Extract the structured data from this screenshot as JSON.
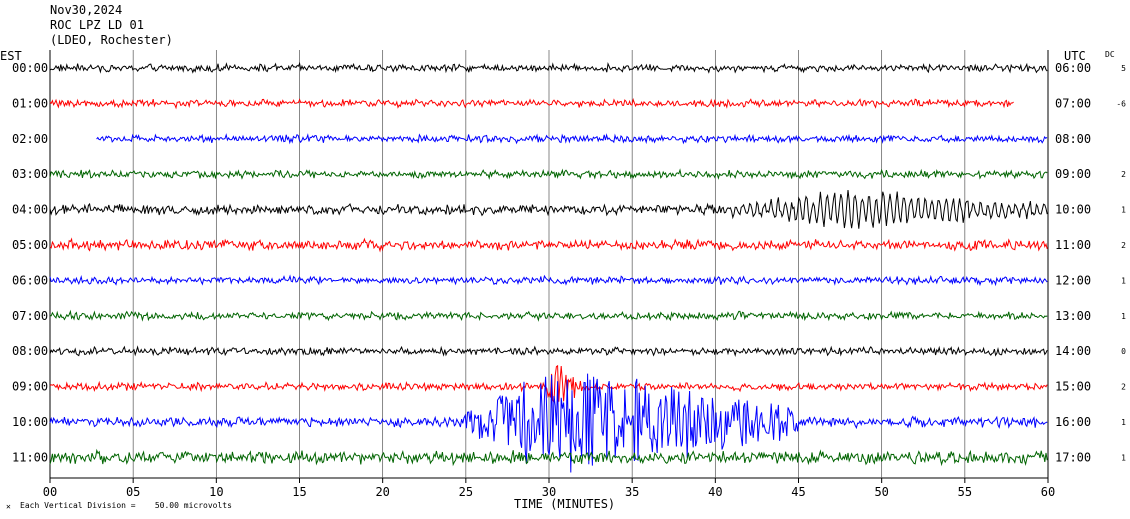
{
  "header": {
    "date": "Nov30,2024",
    "station": "ROC LPZ LD 01",
    "network": "(LDEO, Rochester)"
  },
  "footer": {
    "scale_note": "Each Vertical Division =    50.00 microvolts"
  },
  "colors": {
    "black": "#000000",
    "red": "#ff0000",
    "blue": "#0000ff",
    "green": "#006400"
  },
  "chart_data": {
    "type": "line",
    "title": "Nov30,2024 ROC LPZ LD 01 (LDEO, Rochester)",
    "xlabel": "TIME (MINUTES)",
    "x_ticks": [
      "00",
      "05",
      "10",
      "15",
      "20",
      "25",
      "30",
      "35",
      "40",
      "45",
      "50",
      "55",
      "60"
    ],
    "xlim": [
      0,
      60
    ],
    "grid": true,
    "left_axis_label": "EST",
    "right_axis_label": "UTC",
    "dc_label": "DC",
    "scale_microvolts_per_division": 50.0,
    "rows": [
      {
        "est": "00:00",
        "utc": "06:00",
        "dc": "5",
        "color": "#000000",
        "start_min": 0,
        "end_min": 60,
        "amplitude": 3,
        "events": []
      },
      {
        "est": "01:00",
        "utc": "07:00",
        "dc": "-6",
        "color": "#ff0000",
        "start_min": 0,
        "end_min": 58,
        "amplitude": 3,
        "events": []
      },
      {
        "est": "02:00",
        "utc": "08:00",
        "dc": "",
        "color": "#0000ff",
        "start_min": 2.8,
        "end_min": 60,
        "amplitude": 3,
        "events": []
      },
      {
        "est": "03:00",
        "utc": "09:00",
        "dc": "2",
        "color": "#006400",
        "start_min": 0,
        "end_min": 60,
        "amplitude": 3,
        "events": []
      },
      {
        "est": "04:00",
        "utc": "10:00",
        "dc": "1",
        "color": "#000000",
        "start_min": 0,
        "end_min": 60,
        "amplitude": 4,
        "events": [
          {
            "start": 40,
            "peak": 48,
            "end": 60,
            "amp": 20,
            "period": 0.42
          }
        ]
      },
      {
        "est": "05:00",
        "utc": "11:00",
        "dc": "2",
        "color": "#ff0000",
        "start_min": 0,
        "end_min": 60,
        "amplitude": 4,
        "events": []
      },
      {
        "est": "06:00",
        "utc": "12:00",
        "dc": "1",
        "color": "#0000ff",
        "start_min": 0,
        "end_min": 60,
        "amplitude": 3,
        "events": []
      },
      {
        "est": "07:00",
        "utc": "13:00",
        "dc": "1",
        "color": "#006400",
        "start_min": 0,
        "end_min": 60,
        "amplitude": 3,
        "events": []
      },
      {
        "est": "08:00",
        "utc": "14:00",
        "dc": "0",
        "color": "#000000",
        "start_min": 0,
        "end_min": 60,
        "amplitude": 3,
        "events": []
      },
      {
        "est": "09:00",
        "utc": "15:00",
        "dc": "2",
        "color": "#ff0000",
        "start_min": 0,
        "end_min": 60,
        "amplitude": 3,
        "events": [
          {
            "start": 29.7,
            "peak": 30.5,
            "end": 32,
            "amp": 22,
            "period": 0.18
          }
        ]
      },
      {
        "est": "10:00",
        "utc": "16:00",
        "dc": "1",
        "color": "#0000ff",
        "start_min": 0,
        "end_min": 60,
        "amplitude": 4,
        "events": [
          {
            "start": 24,
            "peak": 30.5,
            "end": 45,
            "amp": 55,
            "period": 0.2
          }
        ]
      },
      {
        "est": "11:00",
        "utc": "17:00",
        "dc": "1",
        "color": "#006400",
        "start_min": 0,
        "end_min": 60,
        "amplitude": 5,
        "events": []
      }
    ]
  }
}
